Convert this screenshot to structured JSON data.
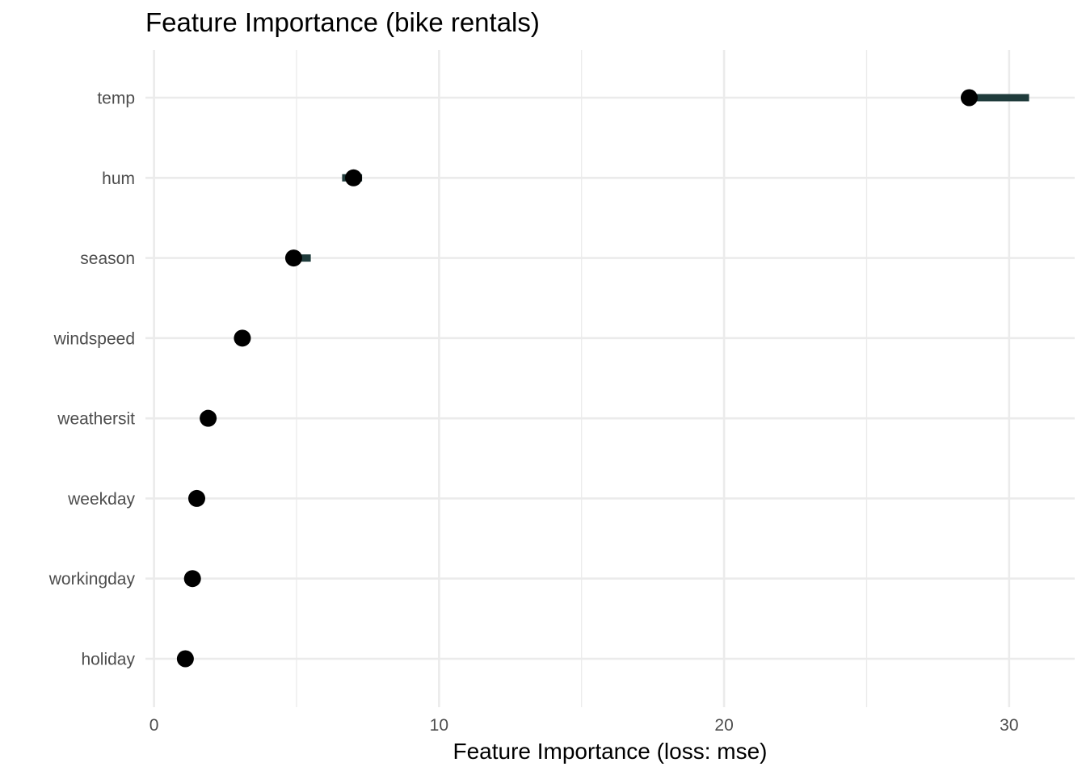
{
  "chart_data": {
    "type": "scatter",
    "title": "Feature Importance (bike rentals)",
    "xlabel": "Feature Importance (loss: mse)",
    "ylabel": "",
    "xlim": [
      -0.3,
      32.3
    ],
    "x_ticks": [
      0,
      10,
      20,
      30
    ],
    "x_minor_ticks": [
      5,
      15,
      25
    ],
    "grid": true,
    "legend": "none",
    "point_color": "#000000",
    "interval_color": "#1f3b3b",
    "features": [
      {
        "name": "temp",
        "importance": 28.6,
        "low": 28.7,
        "high": 30.7
      },
      {
        "name": "hum",
        "importance": 7.0,
        "low": 6.6,
        "high": 7.3
      },
      {
        "name": "season",
        "importance": 4.9,
        "low": 4.9,
        "high": 5.5
      },
      {
        "name": "windspeed",
        "importance": 3.1,
        "low": 3.1,
        "high": 3.1
      },
      {
        "name": "weathersit",
        "importance": 1.9,
        "low": 1.9,
        "high": 1.9
      },
      {
        "name": "weekday",
        "importance": 1.5,
        "low": 1.5,
        "high": 1.5
      },
      {
        "name": "workingday",
        "importance": 1.35,
        "low": 1.35,
        "high": 1.35
      },
      {
        "name": "holiday",
        "importance": 1.1,
        "low": 1.1,
        "high": 1.1
      }
    ]
  }
}
